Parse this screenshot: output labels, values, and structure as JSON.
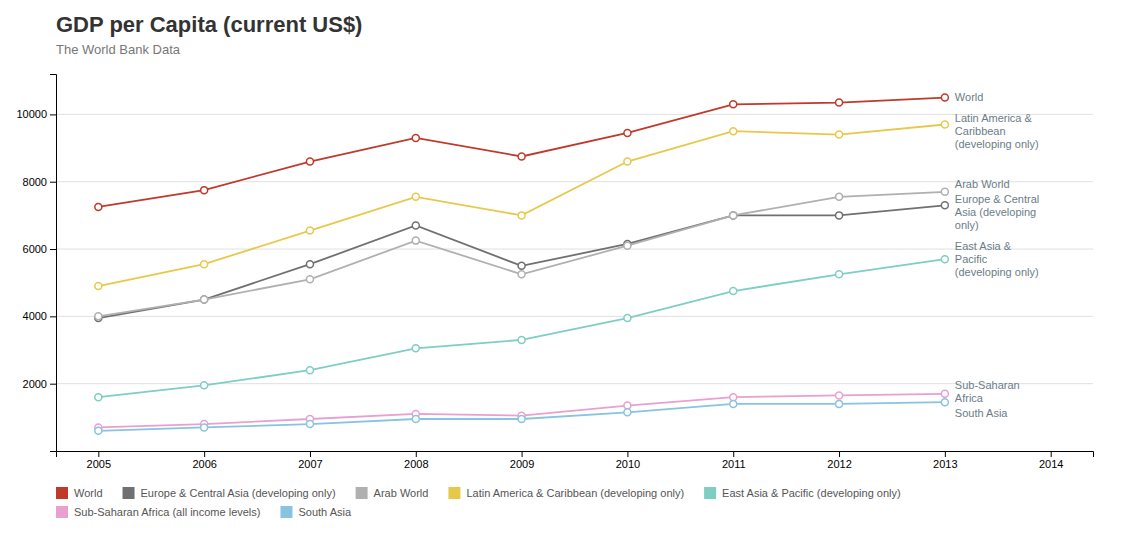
{
  "chart_data": {
    "type": "line",
    "title": "GDP per Capita (current US$)",
    "subtitle": "The World Bank Data",
    "x": [
      2005,
      2006,
      2007,
      2008,
      2009,
      2010,
      2011,
      2012,
      2013
    ],
    "series": [
      {
        "name": "World",
        "color": "#c0392b",
        "values": [
          7250,
          7750,
          8600,
          9300,
          8750,
          9450,
          10300,
          10350,
          10500
        ]
      },
      {
        "name": "Europe & Central Asia (developing only)",
        "color": "#707070",
        "values": [
          3950,
          4500,
          5550,
          6700,
          5500,
          6150,
          7000,
          7000,
          7300
        ]
      },
      {
        "name": "Arab World",
        "color": "#b0b0b0",
        "values": [
          4000,
          4500,
          5100,
          6250,
          5250,
          6100,
          7000,
          7550,
          7700
        ]
      },
      {
        "name": "Latin America & Caribbean (developing only)",
        "color": "#e8c84a",
        "values": [
          4900,
          5550,
          6550,
          7550,
          7000,
          8600,
          9500,
          9400,
          9700
        ]
      },
      {
        "name": "East Asia & Pacific (developing only)",
        "color": "#7ecec4",
        "values": [
          1600,
          1950,
          2400,
          3050,
          3300,
          3950,
          4750,
          5250,
          5700
        ]
      },
      {
        "name": "Sub-Saharan Africa (all income levels)",
        "color": "#e8a0d0",
        "values": [
          700,
          800,
          950,
          1100,
          1050,
          1350,
          1600,
          1650,
          1700
        ]
      },
      {
        "name": "South Asia",
        "color": "#88c4e0",
        "values": [
          600,
          700,
          800,
          950,
          950,
          1150,
          1400,
          1400,
          1450
        ]
      }
    ],
    "annotations": [
      {
        "text": "World",
        "x": 2013,
        "y": 10500
      },
      {
        "text": "Latin America &\nCaribbean\n(developing only)",
        "x": 2013,
        "y": 9500
      },
      {
        "text": "Arab World",
        "x": 2013,
        "y": 7900
      },
      {
        "text": "Europe & Central\nAsia (developing\nonly)",
        "x": 2013,
        "y": 7100
      },
      {
        "text": "East Asia &\nPacific\n(developing only)",
        "x": 2013,
        "y": 5700
      },
      {
        "text": "Sub-Saharan\nAfrica",
        "x": 2013,
        "y": 1750
      },
      {
        "text": "South Asia",
        "x": 2013,
        "y": 1350
      }
    ],
    "xlim": [
      2004.6,
      2014.4
    ],
    "ylim": [
      0,
      11200
    ],
    "xticks": [
      2005,
      2006,
      2007,
      2008,
      2009,
      2010,
      2011,
      2012,
      2013,
      2014
    ],
    "yticks": [
      2000,
      4000,
      6000,
      8000,
      10000
    ],
    "grid": true,
    "legend": "bottom",
    "marker": "circle"
  }
}
